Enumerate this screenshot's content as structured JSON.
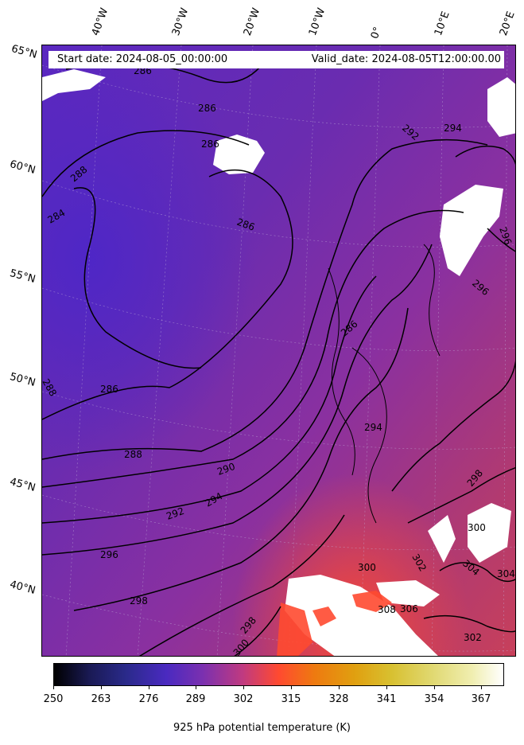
{
  "header": {
    "start_date": "Start date: 2024-08-05_00:00:00",
    "valid_date": "Valid_date: 2024-08-05T12:00:00.00"
  },
  "map": {
    "longitude_labels": [
      "40°W",
      "30°W",
      "20°W",
      "10°W",
      "0°",
      "10°E",
      "20°E"
    ],
    "latitude_labels": [
      "65°N",
      "60°N",
      "55°N",
      "50°N",
      "45°N",
      "40°N"
    ],
    "contour_labels": [
      "286",
      "286",
      "288",
      "284",
      "286",
      "292",
      "294",
      "286",
      "288",
      "286",
      "288",
      "290",
      "292",
      "294",
      "296",
      "298",
      "298",
      "300",
      "300",
      "302",
      "304",
      "306",
      "294",
      "296",
      "298",
      "300",
      "302",
      "304",
      "308",
      "296",
      "286"
    ],
    "colors": {
      "cold": "#5a28c0",
      "mid": "#8a30a0",
      "warm": "#c03a60",
      "hot": "#ff4a30",
      "land_mask": "#ffffff",
      "contour": "#000000"
    }
  },
  "colorbar": {
    "title": "925 hPa potential temperature (K)",
    "ticks": [
      "250",
      "263",
      "276",
      "289",
      "302",
      "315",
      "328",
      "341",
      "354",
      "367"
    ],
    "range": [
      250,
      373
    ],
    "colormap": "CMRmap"
  }
}
